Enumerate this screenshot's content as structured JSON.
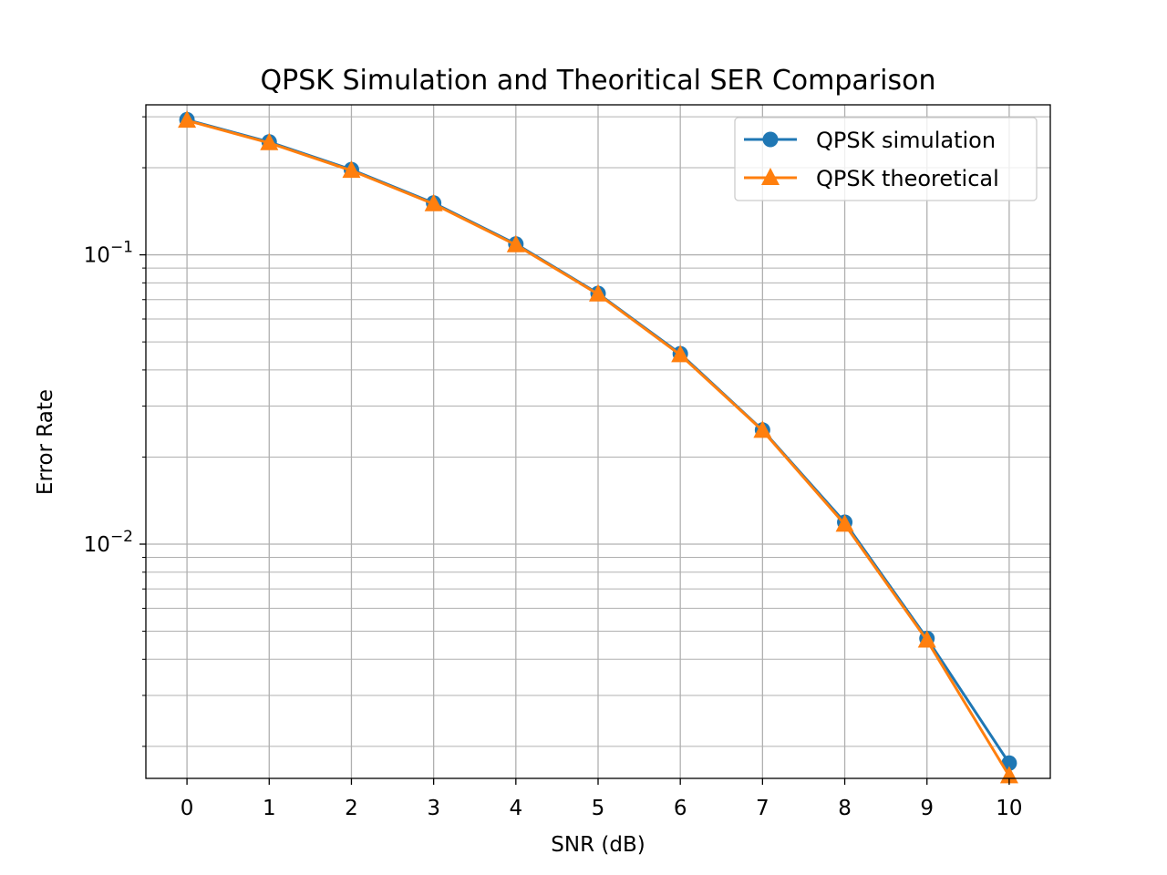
{
  "chart_data": {
    "type": "line",
    "title": "QPSK Simulation and Theoritical SER Comparison",
    "xlabel": "SNR (dB)",
    "ylabel": "Error Rate",
    "xlim": [
      -0.5,
      10.5
    ],
    "ylim": [
      0.00155,
      0.33
    ],
    "yscale": "log",
    "grid": true,
    "legend_position": "upper right",
    "x": [
      0,
      1,
      2,
      3,
      4,
      5,
      6,
      7,
      8,
      9,
      10
    ],
    "x_ticks": [
      "0",
      "1",
      "2",
      "3",
      "4",
      "5",
      "6",
      "7",
      "8",
      "9",
      "10"
    ],
    "y_ticks": [
      {
        "base": "10",
        "exp": "−1",
        "value": 0.1
      },
      {
        "base": "10",
        "exp": "−2",
        "value": 0.01
      }
    ],
    "series": [
      {
        "name": "QPSK simulation",
        "color": "#1f77b4",
        "marker": "circle",
        "values": [
          0.293,
          0.2455,
          0.197,
          0.151,
          0.109,
          0.0735,
          0.0455,
          0.0248,
          0.0119,
          0.00472,
          0.00175
        ]
      },
      {
        "name": "QPSK theoretical",
        "color": "#ff7f0e",
        "marker": "triangle",
        "values": [
          0.2914,
          0.2437,
          0.1955,
          0.1499,
          0.1082,
          0.0731,
          0.0451,
          0.0247,
          0.0117,
          0.00465,
          0.00158
        ]
      }
    ]
  }
}
